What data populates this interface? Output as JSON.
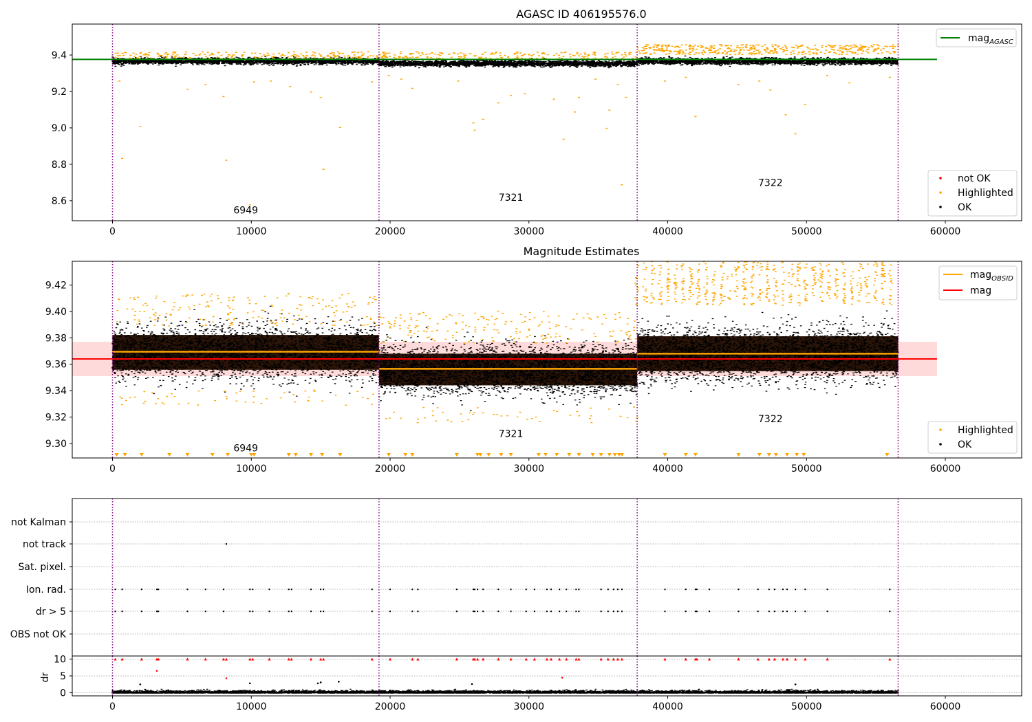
{
  "chart_data": [
    {
      "type": "scatter",
      "title": "AGASC ID 406195576.0",
      "xlim": [
        -2900,
        65500
      ],
      "ylim": [
        8.49,
        9.57
      ],
      "xticks": [
        0,
        10000,
        20000,
        30000,
        40000,
        50000,
        60000
      ],
      "yticks": [
        8.6,
        8.8,
        9.0,
        9.2,
        9.4
      ],
      "ytick_labels": [
        "8.6",
        "8.8",
        "9.0",
        "9.2",
        "9.4"
      ],
      "obsid_boundaries": [
        0,
        19200,
        37800,
        56600
      ],
      "obsid_labels": [
        {
          "text": "6949",
          "x": 9600,
          "y": 8.53
        },
        {
          "text": "7321",
          "x": 28700,
          "y": 8.6
        },
        {
          "text": "7322",
          "x": 47400,
          "y": 8.68
        }
      ],
      "mag_agasc": 9.376,
      "mag_agasc_xrange": [
        -2900,
        59400
      ],
      "series": [
        {
          "name": "OK",
          "color": "#000000"
        },
        {
          "name": "Highlighted",
          "color": "#FFA500"
        },
        {
          "name": "not OK",
          "color": "#FF0000"
        }
      ],
      "segments": [
        {
          "x0": 0,
          "x1": 19200,
          "median": 9.369,
          "spread": 0.011
        },
        {
          "x0": 19200,
          "x1": 37800,
          "median": 9.356,
          "spread": 0.01
        },
        {
          "x0": 37800,
          "x1": 56600,
          "median": 9.368,
          "spread": 0.011
        }
      ],
      "highlight_points": [
        [
          700,
          8.835
        ],
        [
          2000,
          9.01
        ],
        [
          5400,
          9.215
        ],
        [
          6700,
          9.24
        ],
        [
          8000,
          9.175
        ],
        [
          8200,
          8.825
        ],
        [
          9900,
          8.58
        ],
        [
          10200,
          9.255
        ],
        [
          11400,
          9.26
        ],
        [
          12800,
          9.23
        ],
        [
          14300,
          9.2
        ],
        [
          15000,
          9.17
        ],
        [
          15200,
          8.775
        ],
        [
          16400,
          9.005
        ],
        [
          18700,
          9.255
        ],
        [
          500,
          9.26
        ],
        [
          19900,
          9.29
        ],
        [
          20800,
          9.27
        ],
        [
          21600,
          9.22
        ],
        [
          24900,
          9.26
        ],
        [
          26000,
          9.03
        ],
        [
          26100,
          8.99
        ],
        [
          26700,
          9.05
        ],
        [
          27800,
          9.14
        ],
        [
          28700,
          9.18
        ],
        [
          29700,
          9.19
        ],
        [
          31800,
          9.16
        ],
        [
          32500,
          8.94
        ],
        [
          33300,
          9.09
        ],
        [
          33600,
          9.17
        ],
        [
          34800,
          9.27
        ],
        [
          35600,
          9.0
        ],
        [
          35800,
          9.1
        ],
        [
          36700,
          8.69
        ],
        [
          37000,
          9.17
        ],
        [
          36400,
          9.24
        ],
        [
          39800,
          9.26
        ],
        [
          41300,
          9.28
        ],
        [
          42000,
          9.065
        ],
        [
          45100,
          9.24
        ],
        [
          46600,
          9.26
        ],
        [
          47400,
          9.21
        ],
        [
          48500,
          9.075
        ],
        [
          49200,
          8.97
        ],
        [
          49900,
          9.13
        ],
        [
          51500,
          9.29
        ],
        [
          56000,
          9.28
        ],
        [
          53100,
          9.25
        ]
      ],
      "legend_main": [
        {
          "label": "mag",
          "sub": "AGASC",
          "color": "#008000"
        }
      ],
      "legend_points": [
        {
          "label": "not OK",
          "color": "#FF0000"
        },
        {
          "label": "Highlighted",
          "color": "#FFA500"
        },
        {
          "label": "OK",
          "color": "#000000"
        }
      ]
    },
    {
      "type": "scatter",
      "title": "Magnitude Estimates",
      "xlim": [
        -2900,
        65500
      ],
      "ylim": [
        9.289,
        9.438
      ],
      "xticks": [
        0,
        10000,
        20000,
        30000,
        40000,
        50000,
        60000
      ],
      "yticks": [
        9.3,
        9.32,
        9.34,
        9.36,
        9.38,
        9.4,
        9.42
      ],
      "ytick_labels": [
        "9.30",
        "9.32",
        "9.34",
        "9.36",
        "9.38",
        "9.40",
        "9.42"
      ],
      "obsid_boundaries": [
        0,
        19200,
        37800,
        56600
      ],
      "obsid_labels": [
        {
          "text": "6949",
          "x": 9600,
          "y": 9.294
        },
        {
          "text": "7321",
          "x": 28700,
          "y": 9.305
        },
        {
          "text": "7322",
          "x": 47400,
          "y": 9.316
        }
      ],
      "mag": 9.364,
      "mag_band": [
        9.351,
        9.377
      ],
      "mag_xrange": [
        -2900,
        59400
      ],
      "mag_obsid": [
        {
          "x0": 0,
          "x1": 19200,
          "value": 9.3695
        },
        {
          "x0": 19200,
          "x1": 37800,
          "value": 9.3565
        },
        {
          "x0": 37800,
          "x1": 56600,
          "value": 9.368
        }
      ],
      "segments": [
        {
          "x0": 0,
          "x1": 19200,
          "median": 9.369,
          "spread": 0.011
        },
        {
          "x0": 19200,
          "x1": 37800,
          "median": 9.356,
          "spread": 0.01
        },
        {
          "x0": 37800,
          "x1": 56600,
          "median": 9.368,
          "spread": 0.011
        }
      ],
      "lower_markers_x": [
        300,
        900,
        2100,
        4100,
        5400,
        7200,
        8300,
        10000,
        10200,
        12700,
        13200,
        14300,
        15100,
        16400,
        19900,
        21100,
        21600,
        24800,
        26300,
        26500,
        27100,
        28000,
        28700,
        30700,
        31200,
        32000,
        32900,
        33600,
        34600,
        35200,
        35800,
        36200,
        36500,
        36700,
        39800,
        41300,
        42000,
        45100,
        46600,
        47300,
        47800,
        48600,
        49300,
        49800,
        55800
      ],
      "legend_main": [
        {
          "label": "mag",
          "sub": "OBSID",
          "color": "#FFA500"
        },
        {
          "label": "mag",
          "sub": "",
          "color": "#FF0000"
        }
      ],
      "legend_points": [
        {
          "label": "Highlighted",
          "color": "#FFA500"
        },
        {
          "label": "OK",
          "color": "#000000"
        }
      ]
    },
    {
      "type": "scatter",
      "title": "",
      "xlim": [
        -2900,
        65500
      ],
      "xticks": [
        0,
        10000,
        20000,
        30000,
        40000,
        50000,
        60000
      ],
      "obsid_boundaries": [
        0,
        19200,
        37800,
        56600
      ],
      "flag_rows": [
        "not Kalman",
        "not track",
        "Sat. pixel.",
        "Ion. rad.",
        "dr > 5",
        "OBS not OK"
      ],
      "flag_points": {
        "not track": [
          8200
        ],
        "Ion. rad.": [
          200,
          700,
          2100,
          3200,
          3300,
          5400,
          6700,
          8000,
          9900,
          10100,
          11300,
          12700,
          12900,
          14300,
          15000,
          15200,
          18700,
          20000,
          21600,
          22000,
          24800,
          26000,
          26100,
          26300,
          26700,
          27800,
          28700,
          29800,
          30400,
          31300,
          31600,
          32200,
          32700,
          33400,
          33600,
          35200,
          35700,
          36100,
          36400,
          36700,
          39800,
          41300,
          42000,
          42100,
          43000,
          45100,
          46500,
          47300,
          47700,
          48300,
          48600,
          49200,
          49900,
          51500,
          56000
        ],
        "dr > 5": [
          200,
          700,
          2100,
          3200,
          3300,
          5400,
          6700,
          8000,
          9900,
          10100,
          11300,
          12700,
          12900,
          14300,
          15000,
          15200,
          18700,
          20000,
          21600,
          22000,
          24800,
          26000,
          26100,
          26300,
          26700,
          27800,
          28700,
          29800,
          30400,
          31300,
          31600,
          32200,
          32700,
          33400,
          33600,
          35200,
          35700,
          36100,
          36400,
          36700,
          39800,
          41300,
          42000,
          42100,
          43000,
          45100,
          46500,
          47300,
          47700,
          48300,
          48600,
          49200,
          49900,
          51500,
          56000
        ]
      },
      "dr_ylim": [
        -0.5,
        10.5
      ],
      "dr_yticks": [
        0,
        5,
        10
      ],
      "dr_ytick_labels": [
        "0",
        "5",
        "10"
      ],
      "dr_ylabel": "dr",
      "dr_clipped_x": [
        200,
        700,
        2100,
        3200,
        3300,
        5400,
        6700,
        8000,
        8200,
        9900,
        10100,
        11300,
        12700,
        12900,
        14300,
        15000,
        15200,
        18700,
        20000,
        21600,
        22000,
        24800,
        26000,
        26100,
        26300,
        26700,
        27800,
        28700,
        29800,
        30400,
        31300,
        31600,
        32200,
        32700,
        33400,
        33600,
        35200,
        35700,
        36100,
        36400,
        36700,
        39800,
        41300,
        42000,
        42100,
        43000,
        45100,
        46500,
        47300,
        47700,
        48300,
        48600,
        49200,
        49900,
        51500,
        56000
      ],
      "dr_outliers": [
        [
          3200,
          6.5
        ],
        [
          8200,
          4.3
        ],
        [
          32400,
          4.5
        ],
        [
          16300,
          3.3
        ],
        [
          14800,
          2.8
        ],
        [
          15000,
          3.1
        ],
        [
          9900,
          2.8
        ],
        [
          2000,
          2.5
        ],
        [
          25900,
          2.6
        ],
        [
          49200,
          2.5
        ]
      ]
    }
  ]
}
